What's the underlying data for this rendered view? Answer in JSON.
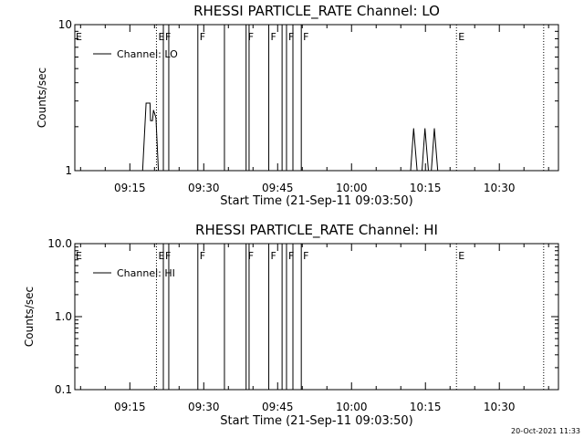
{
  "chart_data": [
    {
      "type": "line",
      "title": "RHESSI PARTICLE_RATE Channel: LO",
      "xlabel": "Start Time (21-Sep-11 09:03:50)",
      "ylabel": "Counts/sec",
      "y_scale": "log",
      "ylim": [
        1,
        10
      ],
      "y_ticks": [
        {
          "value": 1,
          "label": "1"
        },
        {
          "value": 10,
          "label": "10"
        }
      ],
      "x_range_min": [
        3.83,
        102.0
      ],
      "x_ticks": [
        {
          "value": 15,
          "label": "09:15"
        },
        {
          "value": 30,
          "label": "09:30"
        },
        {
          "value": 45,
          "label": "09:45"
        },
        {
          "value": 60,
          "label": "10:00"
        },
        {
          "value": 75,
          "label": "10:15"
        },
        {
          "value": 90,
          "label": "10:30"
        }
      ],
      "legend": {
        "placement": "top-left",
        "label": "Channel: LO"
      },
      "series": [
        {
          "name": "Channel: LO",
          "points": [
            [
              17.6,
              1.0
            ],
            [
              18.3,
              2.9
            ],
            [
              19.1,
              2.9
            ],
            [
              19.2,
              2.2
            ],
            [
              19.6,
              2.2
            ],
            [
              19.8,
              2.6
            ],
            [
              20.3,
              2.3
            ],
            [
              20.8,
              1.0
            ],
            [
              72.0,
              1.0
            ],
            [
              72.6,
              1.95
            ],
            [
              73.3,
              1.0
            ],
            [
              74.3,
              1.0
            ],
            [
              74.9,
              1.95
            ],
            [
              75.6,
              1.0
            ],
            [
              76.2,
              1.0
            ],
            [
              76.8,
              1.95
            ],
            [
              77.5,
              1.0
            ]
          ]
        }
      ],
      "event_lines": [
        {
          "min": 20.4,
          "style": "dotted",
          "label": "E"
        },
        {
          "min": 21.8,
          "style": "solid",
          "label": "F"
        },
        {
          "min": 22.9,
          "style": "solid",
          "label": ""
        },
        {
          "min": 28.8,
          "style": "solid",
          "label": "F"
        },
        {
          "min": 34.2,
          "style": "solid",
          "label": ""
        },
        {
          "min": 38.6,
          "style": "solid",
          "label": "F"
        },
        {
          "min": 39.2,
          "style": "solid",
          "label": ""
        },
        {
          "min": 43.2,
          "style": "solid",
          "label": "F"
        },
        {
          "min": 45.9,
          "style": "solid",
          "label": ""
        },
        {
          "min": 46.8,
          "style": "solid",
          "label": "F"
        },
        {
          "min": 48.1,
          "style": "solid",
          "label": ""
        },
        {
          "min": 49.8,
          "style": "solid",
          "label": "F"
        },
        {
          "min": 81.3,
          "style": "dotted",
          "label": "E"
        },
        {
          "min": 99.0,
          "style": "dotted",
          "label": ""
        }
      ],
      "corner_flag": "E"
    },
    {
      "type": "line",
      "title": "RHESSI PARTICLE_RATE Channel: HI",
      "xlabel": "Start Time (21-Sep-11 09:03:50)",
      "ylabel": "Counts/sec",
      "y_scale": "log",
      "ylim": [
        0.1,
        10.0
      ],
      "y_ticks": [
        {
          "value": 0.1,
          "label": "0.1"
        },
        {
          "value": 1.0,
          "label": "1.0"
        },
        {
          "value": 10.0,
          "label": "10.0"
        }
      ],
      "x_range_min": [
        3.83,
        102.0
      ],
      "x_ticks": [
        {
          "value": 15,
          "label": "09:15"
        },
        {
          "value": 30,
          "label": "09:30"
        },
        {
          "value": 45,
          "label": "09:45"
        },
        {
          "value": 60,
          "label": "10:00"
        },
        {
          "value": 75,
          "label": "10:15"
        },
        {
          "value": 90,
          "label": "10:30"
        }
      ],
      "legend": {
        "placement": "top-left",
        "label": "Channel: HI"
      },
      "series": [
        {
          "name": "Channel: HI",
          "points": []
        }
      ],
      "event_lines": [
        {
          "min": 20.4,
          "style": "dotted",
          "label": "E"
        },
        {
          "min": 21.8,
          "style": "solid",
          "label": "F"
        },
        {
          "min": 22.9,
          "style": "solid",
          "label": ""
        },
        {
          "min": 28.8,
          "style": "solid",
          "label": "F"
        },
        {
          "min": 34.2,
          "style": "solid",
          "label": ""
        },
        {
          "min": 38.6,
          "style": "solid",
          "label": "F"
        },
        {
          "min": 39.2,
          "style": "solid",
          "label": ""
        },
        {
          "min": 43.2,
          "style": "solid",
          "label": "F"
        },
        {
          "min": 45.9,
          "style": "solid",
          "label": ""
        },
        {
          "min": 46.8,
          "style": "solid",
          "label": "F"
        },
        {
          "min": 48.1,
          "style": "solid",
          "label": ""
        },
        {
          "min": 49.8,
          "style": "solid",
          "label": "F"
        },
        {
          "min": 81.3,
          "style": "dotted",
          "label": "E"
        },
        {
          "min": 99.0,
          "style": "dotted",
          "label": ""
        }
      ],
      "corner_flag": "E"
    }
  ],
  "footer": {
    "timestamp": "20-Oct-2021 11:33"
  }
}
